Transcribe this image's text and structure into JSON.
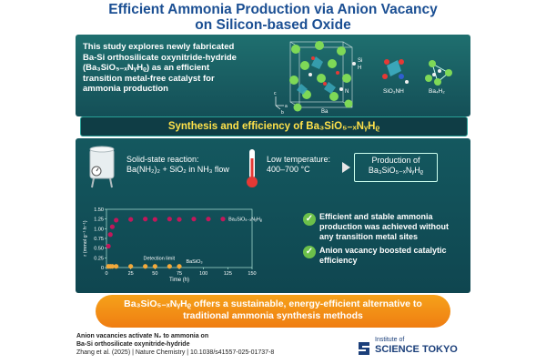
{
  "title": {
    "line1": "Efficient Ammonia Production via Anion Vacancy",
    "line2": "on Silicon-based Oxide"
  },
  "intro": {
    "line1": "This study explores newly fabricated",
    "line2": "Ba-Si orthosilicate oxynitride-hydride",
    "formula": "(Ba₃SiO₅₋ₓNᵧHᵨ)",
    "line3_tail": " as an efficient",
    "line4": "transition metal-free catalyst for",
    "line5": "ammonia production"
  },
  "structure_labels": {
    "si": "Si",
    "n": "N",
    "ba": "Ba",
    "h": "H",
    "axes_c": "c",
    "axes_a": "a",
    "axes_b": "b",
    "sio3nh": "SiO₃NH",
    "ba4h2": "Ba₄H₂"
  },
  "section_header": "Synthesis and efficiency of Ba₃SiO₅₋ₓNᵧHᵨ",
  "synthesis": {
    "step1_l1": "Solid-state reaction:",
    "step1_l2": "Ba(NH₂)₂ + SiO₂ in NH₃ flow",
    "step2_l1": "Low temperature:",
    "step2_l2": "400–700 °C",
    "step3_l1": "Production of",
    "step3_l2": "Ba₃SiO₅₋ₓNᵧHᵨ"
  },
  "claims": [
    {
      "text": "Efficient and stable ammonia production was achieved without any transition metal sites"
    },
    {
      "text": "Anion vacancy boosted catalytic efficiency"
    }
  ],
  "chart_data": {
    "type": "scatter",
    "xlabel": "Time (h)",
    "ylabel": "r (mmol g⁻¹ h⁻¹)",
    "xlim": [
      0,
      150
    ],
    "ylim": [
      0,
      1.5
    ],
    "x_ticks": [
      "0",
      "25",
      "50",
      "75",
      "100",
      "125",
      "150"
    ],
    "y_ticks": [
      "0",
      "0.25",
      "0.50",
      "0.75",
      "1.00",
      "1.25",
      "1.50"
    ],
    "series": [
      {
        "name": "Ba₃SiO₅₋ₓNᵧHᵨ",
        "color": "#c2185b",
        "x": [
          2,
          4,
          6,
          10,
          25,
          40,
          50,
          65,
          75,
          90,
          105,
          120
        ],
        "y": [
          0.55,
          0.85,
          1.05,
          1.22,
          1.24,
          1.25,
          1.24,
          1.25,
          1.24,
          1.25,
          1.25,
          1.25
        ]
      },
      {
        "name": "BaSiO₃",
        "color": "#f2a93b",
        "x": [
          2,
          4,
          6,
          10,
          25,
          40,
          50,
          65,
          75
        ],
        "y": [
          0.03,
          0.03,
          0.03,
          0.03,
          0.03,
          0.03,
          0.03,
          0.03,
          0.03
        ]
      }
    ],
    "annotations": [
      "Detection limit"
    ]
  },
  "conclusion": {
    "formula": "Ba₃SiO₅₋ₓNᵧHᵨ",
    "tail": " offers a sustainable, energy-efficient alternative to",
    "line2": "traditional ammonia synthesis methods"
  },
  "footer": {
    "ref_title_l1": "Anion vacancies activate N₂ to ammonia on",
    "ref_title_l2": "Ba-Si orthosilicate oxynitride-hydride",
    "citation": "Zhang et al. (2025) | Nature Chemistry | 10.1038/s41557-025-01737-8",
    "logo_small": "Institute of",
    "logo_main": "SCIENCE TOKYO"
  },
  "colors": {
    "title": "#1b4f93",
    "panel": "#14585f",
    "header_text": "#ffe24a",
    "accent_orange": "#f2a93b",
    "magenta": "#c2185b",
    "check_green": "#6cc04a"
  }
}
